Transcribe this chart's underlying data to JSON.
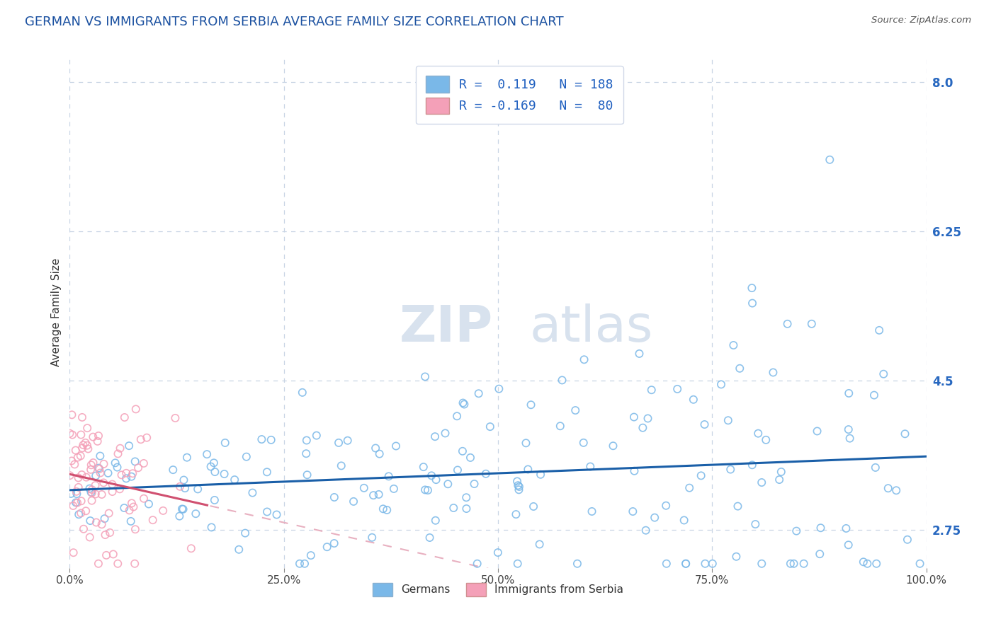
{
  "title": "GERMAN VS IMMIGRANTS FROM SERBIA AVERAGE FAMILY SIZE CORRELATION CHART",
  "source_text": "Source: ZipAtlas.com",
  "ylabel": "Average Family Size",
  "xlim": [
    0.0,
    1.0
  ],
  "ylim": [
    2.3,
    8.3
  ],
  "yticks": [
    2.75,
    4.5,
    6.25,
    8.0
  ],
  "xticks": [
    0.0,
    0.25,
    0.5,
    0.75,
    1.0
  ],
  "xticklabels": [
    "0.0%",
    "25.0%",
    "50.0%",
    "75.0%",
    "100.0%"
  ],
  "german_color": "#7ab8e8",
  "serbian_color": "#f4a0b8",
  "german_edge_color": "#5a9fd4",
  "serbian_edge_color": "#e07898",
  "german_trend_color": "#1a5fa8",
  "serbian_trend_color": "#d05070",
  "serbian_dash_color": "#e8b0c0",
  "background_color": "#ffffff",
  "grid_color": "#c8d4e4",
  "legend_R_german": "0.119",
  "legend_N_german": "188",
  "legend_R_serbian": "-0.169",
  "legend_N_serbian": "80",
  "watermark_zip": "ZIP",
  "watermark_atlas": "atlas",
  "legend_label_german": "Germans",
  "legend_label_serbian": "Immigrants from Serbia",
  "title_fontsize": 13,
  "axis_label_fontsize": 11,
  "tick_fontsize": 11,
  "watermark_fontsize": 52,
  "watermark_color": "#d8e2ee",
  "N_german": 188,
  "N_serbian": 80
}
